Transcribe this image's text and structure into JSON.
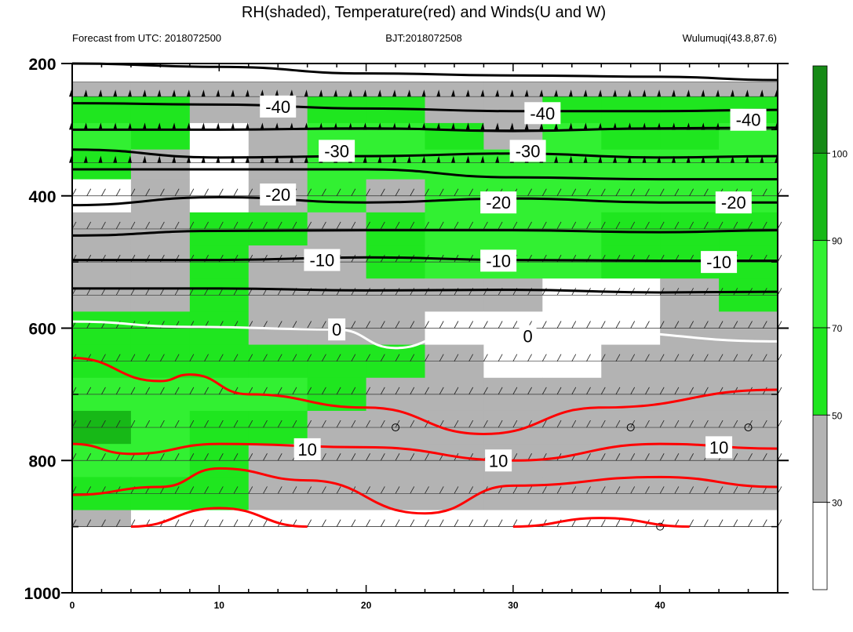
{
  "chart_data": {
    "type": "contour",
    "title": "RH(shaded), Temperature(red) and Winds(U and W)",
    "header": {
      "left": "Forecast from UTC: 2018072500",
      "center": "BJT:2018072508",
      "right": "Wulumuqi(43.8,87.6)"
    },
    "x_ticks": [
      "0",
      "10",
      "20",
      "30",
      "40"
    ],
    "y_ticks": [
      "200",
      "400",
      "600",
      "800",
      "1000"
    ],
    "xlim": [
      0,
      48
    ],
    "ylim": [
      200,
      1000
    ],
    "y_inverted": true,
    "colorbar": {
      "ticks": [
        "30",
        "50",
        "70",
        "90",
        "100"
      ],
      "levels": [
        0,
        30,
        50,
        70,
        90,
        100,
        110
      ],
      "colors": [
        "#ffffff",
        "#b3b3b3",
        "#1fe61f",
        "#32f032",
        "#17b817",
        "#168a16"
      ]
    },
    "colors": {
      "temperature": "#ff0000",
      "isotherm": "#000000",
      "freezing": "#ffffff"
    },
    "temperature_labels": [
      {
        "text": "-40",
        "x": 14,
        "p": 265
      },
      {
        "text": "-40",
        "x": 32,
        "p": 275
      },
      {
        "text": "-40",
        "x": 46,
        "p": 285
      },
      {
        "text": "-30",
        "x": 18,
        "p": 332
      },
      {
        "text": "-30",
        "x": 31,
        "p": 332
      },
      {
        "text": "-20",
        "x": 14,
        "p": 398
      },
      {
        "text": "-20",
        "x": 29,
        "p": 410
      },
      {
        "text": "-20",
        "x": 45,
        "p": 410
      },
      {
        "text": "-10",
        "x": 17,
        "p": 497
      },
      {
        "text": "-10",
        "x": 29,
        "p": 498
      },
      {
        "text": "-10",
        "x": 44,
        "p": 500
      },
      {
        "text": "0",
        "x": 18,
        "p": 602
      },
      {
        "text": "0",
        "x": 31,
        "p": 612
      },
      {
        "text": "10",
        "x": 16,
        "p": 783
      },
      {
        "text": "10",
        "x": 29,
        "p": 800
      },
      {
        "text": "10",
        "x": 44,
        "p": 780
      }
    ],
    "isotherms": [
      {
        "label": "-40",
        "points": [
          [
            0,
            200
          ],
          [
            10,
            205
          ],
          [
            20,
            215
          ],
          [
            30,
            218
          ],
          [
            40,
            220
          ],
          [
            48,
            225
          ]
        ]
      },
      {
        "label": "-40",
        "points": [
          [
            0,
            260
          ],
          [
            10,
            262
          ],
          [
            20,
            268
          ],
          [
            30,
            272
          ],
          [
            40,
            272
          ],
          [
            48,
            270
          ]
        ]
      },
      {
        "label": "-30",
        "points": [
          [
            0,
            300
          ],
          [
            10,
            300
          ],
          [
            20,
            298
          ],
          [
            30,
            302
          ],
          [
            40,
            298
          ],
          [
            48,
            297
          ]
        ]
      },
      {
        "label": "-30",
        "points": [
          [
            0,
            330
          ],
          [
            10,
            342
          ],
          [
            20,
            340
          ],
          [
            30,
            336
          ],
          [
            40,
            342
          ],
          [
            48,
            340
          ]
        ]
      },
      {
        "label": "-20",
        "points": [
          [
            0,
            360
          ],
          [
            10,
            360
          ],
          [
            20,
            360
          ],
          [
            30,
            372
          ],
          [
            40,
            375
          ],
          [
            48,
            375
          ]
        ]
      },
      {
        "label": "-20",
        "points": [
          [
            0,
            414
          ],
          [
            10,
            402
          ],
          [
            20,
            410
          ],
          [
            30,
            404
          ],
          [
            40,
            410
          ],
          [
            48,
            410
          ]
        ]
      },
      {
        "label": "-10",
        "points": [
          [
            0,
            460
          ],
          [
            10,
            453
          ],
          [
            20,
            452
          ],
          [
            30,
            452
          ],
          [
            40,
            455
          ],
          [
            48,
            452
          ]
        ]
      },
      {
        "label": "-10",
        "points": [
          [
            0,
            497
          ],
          [
            10,
            497
          ],
          [
            20,
            493
          ],
          [
            30,
            497
          ],
          [
            40,
            498
          ],
          [
            48,
            498
          ]
        ]
      },
      {
        "label": "-10",
        "points": [
          [
            0,
            540
          ],
          [
            10,
            540
          ],
          [
            20,
            543
          ],
          [
            30,
            542
          ],
          [
            40,
            546
          ],
          [
            48,
            545
          ]
        ]
      }
    ],
    "freezing_line": {
      "label": "0",
      "points": [
        [
          0,
          590
        ],
        [
          8,
          598
        ],
        [
          18,
          602
        ],
        [
          22,
          630
        ],
        [
          26,
          610
        ],
        [
          35,
          605
        ],
        [
          48,
          620
        ]
      ]
    },
    "temperature_red": [
      {
        "label": "10",
        "points": [
          [
            0,
            645
          ],
          [
            6,
            680
          ],
          [
            8,
            670
          ],
          [
            12,
            700
          ],
          [
            20,
            720
          ],
          [
            28,
            760
          ],
          [
            36,
            720
          ],
          [
            48,
            693
          ]
        ]
      },
      {
        "label": "10",
        "points": [
          [
            0,
            775
          ],
          [
            4,
            790
          ],
          [
            10,
            775
          ],
          [
            20,
            780
          ],
          [
            30,
            800
          ],
          [
            40,
            775
          ],
          [
            48,
            782
          ]
        ]
      },
      {
        "label": "10",
        "points": [
          [
            0,
            852
          ],
          [
            6,
            840
          ],
          [
            10,
            812
          ],
          [
            16,
            830
          ],
          [
            24,
            880
          ],
          [
            30,
            838
          ],
          [
            40,
            825
          ],
          [
            48,
            840
          ]
        ]
      },
      {
        "label": "10",
        "points": [
          [
            4,
            900
          ],
          [
            10,
            872
          ],
          [
            16,
            900
          ]
        ]
      },
      {
        "label": "10",
        "points": [
          [
            30,
            900
          ],
          [
            36,
            887
          ],
          [
            42,
            900
          ]
        ]
      }
    ],
    "rh_field_description": {
      "x_bins": [
        0,
        4,
        8,
        12,
        16,
        20,
        24,
        28,
        32,
        36,
        40,
        44,
        48
      ],
      "p_bins": [
        230,
        270,
        310,
        350,
        400,
        450,
        500,
        550,
        600,
        650,
        700,
        750,
        800,
        850,
        900
      ],
      "rh": [
        [
          40,
          40,
          40,
          40,
          45,
          45,
          40,
          45,
          40,
          40,
          40,
          40
        ],
        [
          55,
          55,
          40,
          40,
          60,
          60,
          45,
          35,
          55,
          55,
          60,
          60
        ],
        [
          70,
          60,
          20,
          40,
          70,
          75,
          60,
          40,
          70,
          60,
          60,
          70
        ],
        [
          60,
          40,
          15,
          40,
          70,
          75,
          70,
          70,
          70,
          75,
          75,
          75
        ],
        [
          20,
          40,
          20,
          40,
          70,
          40,
          70,
          70,
          70,
          70,
          70,
          70
        ],
        [
          40,
          40,
          60,
          60,
          40,
          60,
          70,
          70,
          70,
          65,
          60,
          60
        ],
        [
          40,
          40,
          60,
          40,
          40,
          60,
          70,
          70,
          70,
          60,
          60,
          65
        ],
        [
          40,
          40,
          60,
          40,
          40,
          45,
          45,
          45,
          20,
          20,
          45,
          55
        ],
        [
          60,
          60,
          60,
          45,
          40,
          40,
          20,
          20,
          20,
          20,
          40,
          30
        ],
        [
          60,
          60,
          60,
          65,
          65,
          60,
          45,
          20,
          20,
          40,
          40,
          30
        ],
        [
          80,
          70,
          70,
          70,
          60,
          45,
          45,
          45,
          45,
          45,
          45,
          45
        ],
        [
          95,
          80,
          60,
          60,
          45,
          45,
          45,
          45,
          45,
          45,
          45,
          45
        ],
        [
          70,
          70,
          55,
          45,
          45,
          45,
          45,
          45,
          45,
          45,
          45,
          45
        ],
        [
          60,
          60,
          55,
          45,
          40,
          45,
          45,
          40,
          40,
          40,
          40,
          40
        ],
        [
          35,
          20,
          20,
          20,
          20,
          20,
          20,
          20,
          20,
          20,
          20,
          20
        ]
      ]
    }
  }
}
